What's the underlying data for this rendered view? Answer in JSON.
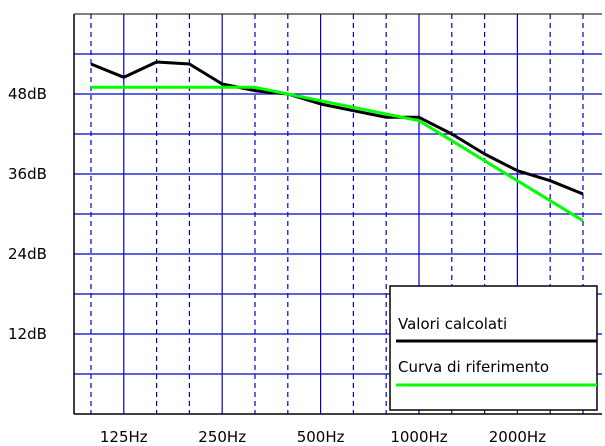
{
  "chart_data": {
    "type": "line",
    "title": "",
    "xlabel": "",
    "ylabel": "",
    "x_ticks": [
      "125Hz",
      "250Hz",
      "500Hz",
      "1000Hz",
      "2000Hz"
    ],
    "y_ticks": [
      "48dB",
      "36dB",
      "24dB",
      "12dB"
    ],
    "y_tick_values": [
      48,
      36,
      24,
      12
    ],
    "ylim": [
      0,
      60
    ],
    "x_scale": "log2 (third-octave bands)",
    "x_bands_hz": [
      100,
      125,
      160,
      200,
      250,
      315,
      400,
      500,
      630,
      800,
      1000,
      1250,
      1600,
      2000,
      2500,
      3150
    ],
    "grid": true,
    "legend_position": "bottom-right",
    "series": [
      {
        "name": "Valori calcolati",
        "color": "#000000",
        "values": [
          52.5,
          50.5,
          52.8,
          52.5,
          49.5,
          48.5,
          48.0,
          46.5,
          45.5,
          44.5,
          44.5,
          42.0,
          39.0,
          36.5,
          35.0,
          33.0
        ]
      },
      {
        "name": "Curva di riferimento",
        "color": "#00ff00",
        "values": [
          49,
          49,
          49,
          49,
          49,
          49,
          48,
          47,
          46,
          45,
          44,
          41,
          38,
          35,
          32,
          29
        ]
      }
    ]
  },
  "colors": {
    "grid": "#0000cc",
    "axis": "#000000",
    "background": "#ffffff"
  }
}
